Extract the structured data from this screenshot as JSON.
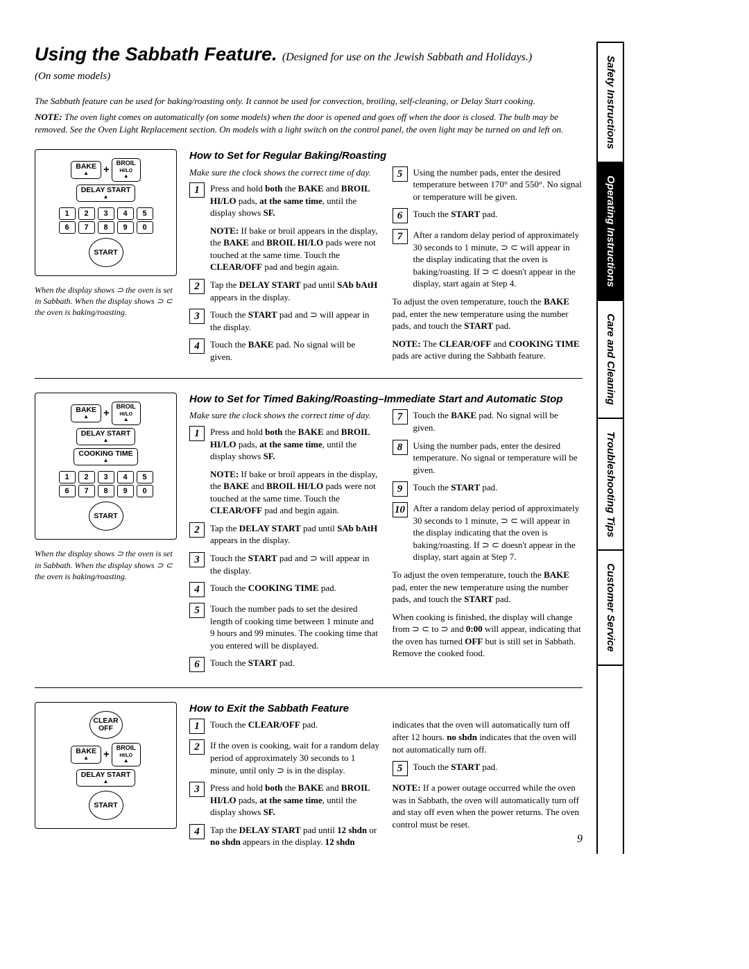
{
  "header": {
    "title": "Using the Sabbath Feature.",
    "title_sub": "(Designed for use on the Jewish Sabbath and Holidays.)",
    "note_line": "(On some models)"
  },
  "intro": {
    "p1": "The Sabbath feature can be used for baking/roasting only. It cannot be used for convection, broiling, self-cleaning, or Delay Start cooking.",
    "p2_prefix": "NOTE:",
    "p2": "The oven light comes on automatically (on some models) when the door is opened and goes off when the door is closed. The bulb may be removed. See the Oven Light Replacement section. On models with a light switch on the control panel, the oven light may be turned on and left on."
  },
  "sec1": {
    "title": "How to Set for Regular Baking/Roasting",
    "make_sure": "Make sure the clock shows the correct time of day.",
    "caption": "When the display shows ⊃ the oven is set in Sabbath. When the display shows ⊃ ⊂ the oven is baking/roasting.",
    "steps_left": {
      "s1": "Press and hold <b>both</b> the <b>BAKE</b> and <b>BROIL HI/LO</b> pads, <b>at the same time</b>, until the display shows <b>SF.</b>",
      "s1note": "<b>NOTE:</b> If bake or broil appears in the display, the <b>BAKE</b> and <b>BROIL HI/LO</b> pads were not touched at the same time. Touch the <b>CLEAR/OFF</b> pad and begin again.",
      "s2": "Tap the <b>DELAY START</b> pad until <b>SAb bAtH</b> appears in the display.",
      "s3": "Touch the <b>START</b> pad and ⊃ will appear in the display.",
      "s4": "Touch the <b>BAKE</b> pad. No signal will be given."
    },
    "steps_right": {
      "s5": "Using the number pads, enter the desired temperature between 170° and 550°. No signal or temperature will be given.",
      "s6": "Touch the <b>START</b> pad.",
      "s7": "After a random delay period of approximately 30 seconds to 1 minute, ⊃ ⊂ will appear in the display indicating that the oven is baking/roasting. If ⊃ ⊂ doesn't appear in the display, start again at Step 4."
    },
    "tail1": "To adjust the oven temperature, touch the <b>BAKE</b> pad, enter the new temperature using the number pads, and touch the <b>START</b> pad.",
    "tail2": "<b>NOTE:</b> The <b>CLEAR/OFF</b> and <b>COOKING TIME</b> pads are active during the Sabbath feature."
  },
  "sec2": {
    "title": "How to Set for Timed Baking/Roasting–Immediate Start and Automatic Stop",
    "make_sure": "Make sure the clock shows the correct time of day.",
    "caption": "When the display shows ⊃ the oven is set in Sabbath. When the display shows ⊃ ⊂ the oven is baking/roasting.",
    "left": {
      "s1": "Press and hold <b>both</b> the <b>BAKE</b> and <b>BROIL HI/LO</b> pads, <b>at the same time</b>, until the display shows <b>SF.</b>",
      "s1note": "<b>NOTE:</b> If bake or broil appears in the display, the <b>BAKE</b> and <b>BROIL HI/LO</b> pads were not touched at the same time. Touch the <b>CLEAR/OFF</b> pad and begin again.",
      "s2": "Tap the <b>DELAY START</b> pad until <b>SAb bAtH</b> appears in the display.",
      "s3": "Touch the <b>START</b> pad and ⊃ will appear in the display.",
      "s4": "Touch the <b>COOKING TIME</b> pad.",
      "s5": "Touch the number pads to set the desired length of cooking time between 1 minute and 9 hours and 99 minutes. The cooking time that you entered will be displayed.",
      "s6": "Touch the <b>START</b> pad."
    },
    "right": {
      "s7": "Touch the <b>BAKE</b> pad. No signal will be given.",
      "s8": "Using the number pads, enter the desired temperature. No signal or temperature will be given.",
      "s9": "Touch the <b>START</b> pad.",
      "s10": "After a random delay period of approximately 30 seconds to 1 minute, ⊃ ⊂ will appear in the display indicating that the oven is baking/roasting. If ⊃ ⊂ doesn't appear in the display, start again at Step 7."
    },
    "tail1": "To adjust the oven temperature, touch the <b>BAKE</b> pad, enter the new temperature using the number pads, and touch the <b>START</b> pad.",
    "tail2": "When cooking is finished, the display will change from ⊃ ⊂ to ⊃ and <b>0:00</b> will appear, indicating that the oven has turned <b>OFF</b> but is still set in Sabbath. Remove the cooked food."
  },
  "sec3": {
    "title": "How to Exit the Sabbath Feature",
    "left": {
      "s1": "Touch the <b>CLEAR/OFF</b> pad.",
      "s2": "If the oven is cooking, wait for a random delay period of approximately 30 seconds to 1 minute, until only ⊃ is in the display.",
      "s3": "Press and hold <b>both</b> the <b>BAKE</b> and <b>BROIL HI/LO</b> pads, <b>at the same time</b>, until the display shows <b>SF.</b>",
      "s4": "Tap the <b>DELAY START</b> pad until <b>12 shdn</b> or <b>no shdn</b> appears in the display. <b>12 shdn</b>"
    },
    "right_cont": "indicates that the oven will automatically turn off after 12 hours. <b>no shdn</b> indicates that the oven will not automatically turn off.",
    "s5": "Touch the <b>START</b> pad.",
    "note": "<b>NOTE:</b> If a power outage occurred while the oven was in Sabbath, the oven will automatically turn off and stay off even when the power returns. The oven control must be reset."
  },
  "keypad": {
    "bake": "BAKE",
    "broil": "BROIL",
    "hilo": "HI/LO",
    "delay": "DELAY START",
    "cooking": "COOKING TIME",
    "clear": "CLEAR OFF",
    "start": "START",
    "nums": [
      "1",
      "2",
      "3",
      "4",
      "5",
      "6",
      "7",
      "8",
      "9",
      "0"
    ]
  },
  "tabs": {
    "t1": "Safety Instructions",
    "t2": "Operating Instructions",
    "t3": "Care and Cleaning",
    "t4": "Troubleshooting Tips",
    "t5": "Customer Service"
  },
  "page_number": "9"
}
